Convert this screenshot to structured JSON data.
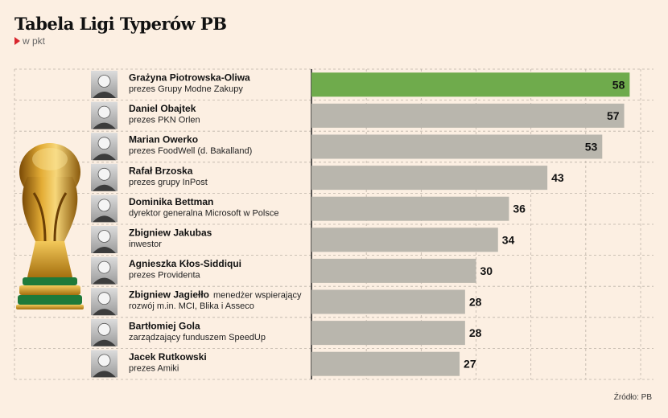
{
  "title": "Tabela Ligi Typerów PB",
  "unit": "w pkt",
  "source": "Źródło: PB",
  "colors": {
    "background": "#fcefe2",
    "bar_default": "#b9b6ad",
    "bar_highlight": "#6fab4c",
    "grid": "#bdb3a8",
    "unit_marker": "#d8262d"
  },
  "icons": {
    "trophy": "world-cup-trophy-icon"
  },
  "chart_data": {
    "type": "bar",
    "orientation": "horizontal",
    "categories": [
      "Grażyna Piotrowska-Oliwa",
      "Daniel Obajtek",
      "Marian Owerko",
      "Rafał Brzoska",
      "Dominika Bettman",
      "Zbigniew Jakubas",
      "Agnieszka Kłos-Siddiqui",
      "Zbigniew Jagiełło",
      "Bartłomiej Gola",
      "Jacek Rutkowski"
    ],
    "roles": [
      [
        "prezes Grupy Modne Zakupy"
      ],
      [
        "prezes PKN Orlen"
      ],
      [
        "prezes FoodWell (d. Bakalland)"
      ],
      [
        "prezes grupy InPost"
      ],
      [
        "dyrektor generalna Microsoft w Polsce"
      ],
      [
        "inwestor"
      ],
      [
        "prezes Providenta"
      ],
      [
        "menedżer wspierający",
        "rozwój m.in. MCI, Blika i Asseco"
      ],
      [
        "zarządzający funduszem SpeedUp"
      ],
      [
        "prezes Amiki"
      ]
    ],
    "values": [
      58,
      57,
      53,
      43,
      36,
      34,
      30,
      28,
      28,
      27
    ],
    "highlight_index": 0,
    "xlim": [
      0,
      60
    ],
    "grid": true,
    "legend": "none"
  }
}
